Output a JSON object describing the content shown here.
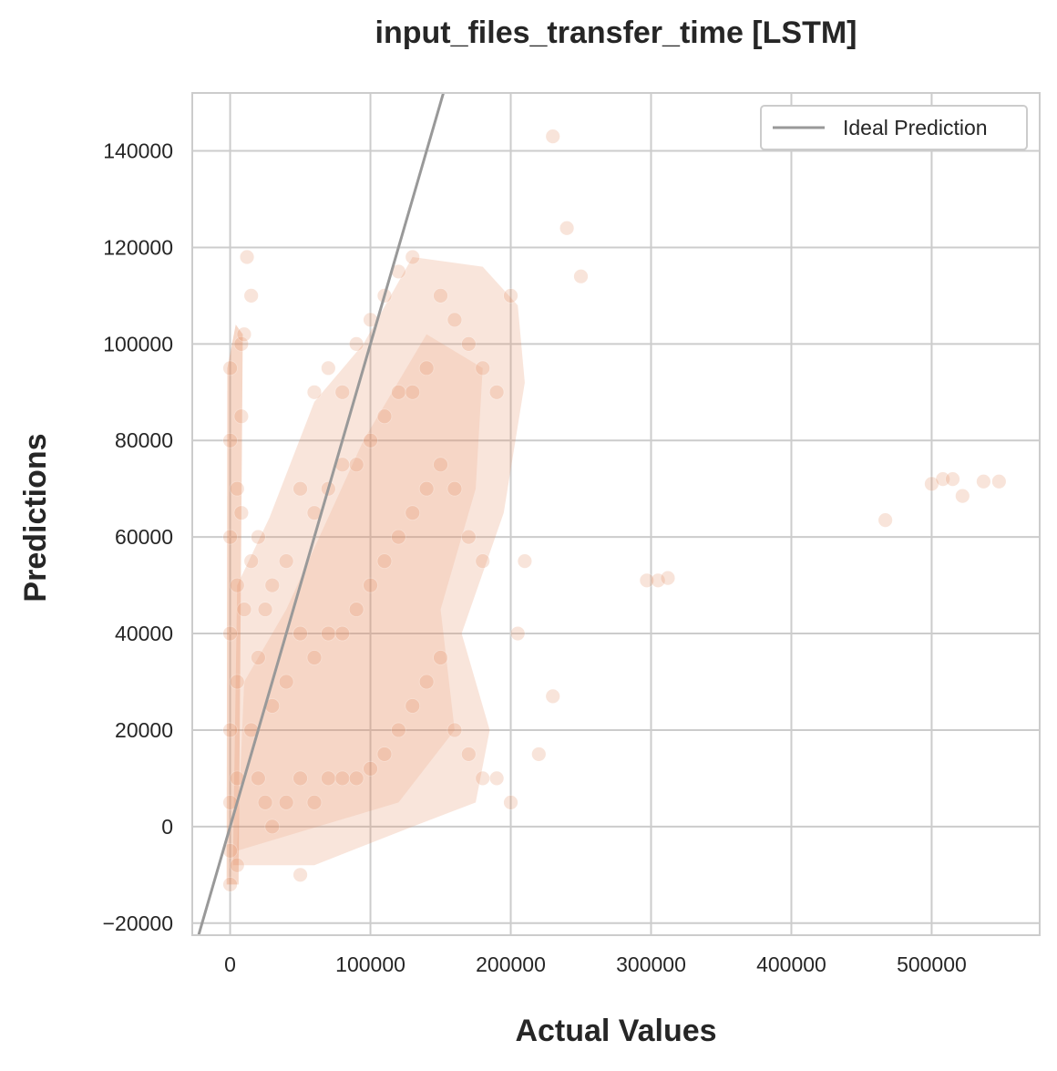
{
  "chart_data": {
    "type": "scatter",
    "title": "input_files_transfer_time [LSTM]",
    "xlabel": "Actual Values",
    "ylabel": "Predictions",
    "xlim": [
      -27000,
      577000
    ],
    "ylim": [
      -22500,
      152000
    ],
    "xticks": [
      0,
      100000,
      200000,
      300000,
      400000,
      500000
    ],
    "yticks": [
      -20000,
      0,
      20000,
      40000,
      60000,
      80000,
      100000,
      120000,
      140000
    ],
    "grid": true,
    "legend": {
      "position": "top-right",
      "entries": [
        "Ideal Prediction"
      ]
    },
    "colors": {
      "points": "#e4895b",
      "ideal_line": "#999999",
      "grid": "#cccccc",
      "axes_edge": "#cccccc"
    },
    "series": [
      {
        "kind": "points",
        "x": [
          0,
          0,
          0,
          0,
          0,
          0,
          0,
          0,
          5000,
          5000,
          5000,
          5000,
          5000,
          8000,
          8000,
          8000,
          10000,
          10000,
          12000,
          15000,
          15000,
          15000,
          20000,
          20000,
          20000,
          25000,
          25000,
          30000,
          30000,
          30000,
          40000,
          40000,
          40000,
          50000,
          50000,
          50000,
          50000,
          60000,
          60000,
          60000,
          60000,
          70000,
          70000,
          70000,
          70000,
          80000,
          80000,
          80000,
          80000,
          90000,
          90000,
          90000,
          90000,
          100000,
          100000,
          100000,
          100000,
          110000,
          110000,
          110000,
          110000,
          120000,
          120000,
          120000,
          120000,
          130000,
          130000,
          130000,
          130000,
          140000,
          140000,
          140000,
          150000,
          150000,
          150000,
          160000,
          160000,
          160000,
          170000,
          170000,
          170000,
          180000,
          180000,
          180000,
          190000,
          190000,
          200000,
          200000,
          205000,
          210000,
          220000,
          230000,
          230000,
          240000,
          250000,
          297000,
          305000,
          312000,
          467000,
          500000,
          508000,
          515000,
          522000,
          537000,
          548000
        ],
        "y": [
          -12000,
          -5000,
          5000,
          20000,
          40000,
          60000,
          80000,
          95000,
          -8000,
          10000,
          30000,
          50000,
          70000,
          100000,
          85000,
          65000,
          102000,
          45000,
          118000,
          20000,
          55000,
          110000,
          10000,
          35000,
          60000,
          5000,
          45000,
          0,
          25000,
          50000,
          5000,
          30000,
          55000,
          -10000,
          10000,
          40000,
          70000,
          5000,
          35000,
          65000,
          90000,
          10000,
          40000,
          70000,
          95000,
          10000,
          40000,
          75000,
          90000,
          10000,
          45000,
          75000,
          100000,
          12000,
          50000,
          80000,
          105000,
          15000,
          55000,
          85000,
          110000,
          20000,
          60000,
          90000,
          115000,
          25000,
          65000,
          90000,
          118000,
          30000,
          70000,
          95000,
          35000,
          75000,
          110000,
          20000,
          70000,
          105000,
          15000,
          60000,
          100000,
          10000,
          55000,
          95000,
          10000,
          90000,
          5000,
          110000,
          40000,
          55000,
          15000,
          27000,
          143000,
          124000,
          114000,
          51000,
          51000,
          51500,
          63500,
          71000,
          72000,
          72000,
          68500,
          71500,
          71500
        ]
      },
      {
        "kind": "line",
        "name": "Ideal Prediction",
        "x": [
          -22500,
          152000
        ],
        "y": [
          -22500,
          152000
        ]
      }
    ]
  }
}
